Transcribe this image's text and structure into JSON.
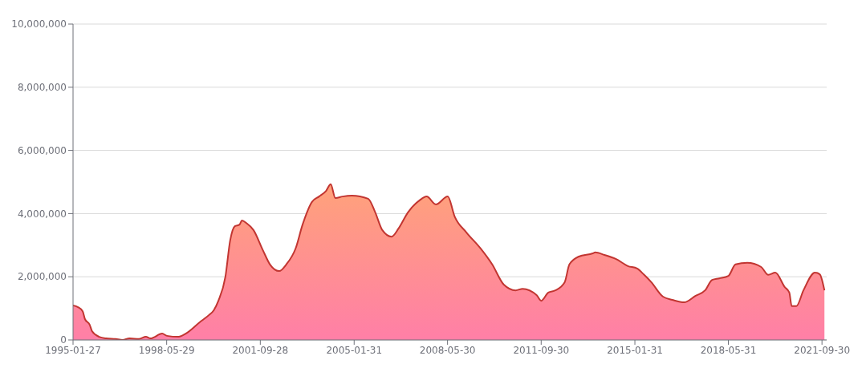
{
  "chart_data": {
    "type": "area",
    "x": [
      "1995-01-27",
      "1995-04",
      "1995-06",
      "1995-07",
      "1995-09",
      "1995-10",
      "1996-01",
      "1996-04",
      "1996-08",
      "1996-11",
      "1997-02",
      "1997-06",
      "1997-09",
      "1997-11",
      "1998-04",
      "1998-06",
      "1998-11",
      "1999-02",
      "1999-08",
      "1999-12",
      "2000-02",
      "2000-04",
      "2000-07",
      "2000-09",
      "2000-11",
      "2001-01",
      "2001-02",
      "2001-04",
      "2001-07",
      "2001-11",
      "2002-02",
      "2002-06",
      "2002-09",
      "2003-01",
      "2003-04",
      "2003-08",
      "2003-11",
      "2004-02",
      "2004-04",
      "2004-06",
      "2004-09",
      "2005-01",
      "2005-08",
      "2005-11",
      "2006-02",
      "2006-06",
      "2006-09",
      "2007-01",
      "2007-06",
      "2007-09",
      "2008-01",
      "2008-06",
      "2008-09",
      "2009-02",
      "2009-08",
      "2010-01",
      "2010-06",
      "2010-11",
      "2011-02",
      "2011-08",
      "2011-10",
      "2012-01",
      "2012-04",
      "2012-08",
      "2012-10",
      "2013-02",
      "2013-08",
      "2013-09",
      "2014-01",
      "2014-06",
      "2014-11",
      "2015-03",
      "2015-06",
      "2015-09",
      "2016-02",
      "2016-06",
      "2016-11",
      "2017-04",
      "2017-08",
      "2017-11",
      "2018-02",
      "2018-06",
      "2018-09",
      "2019-02",
      "2019-08",
      "2019-11",
      "2020-02",
      "2020-06",
      "2020-08",
      "2020-09",
      "2020-11",
      "2021-02",
      "2021-07",
      "2021-09",
      "2021-11"
    ],
    "series": [
      {
        "color": "#c23531",
        "values": [
          1090000,
          1040000,
          910000,
          660000,
          480000,
          280000,
          100000,
          50000,
          30000,
          0,
          50000,
          30000,
          100000,
          50000,
          200000,
          130000,
          100000,
          200000,
          560000,
          790000,
          940000,
          1240000,
          2000000,
          3150000,
          3600000,
          3650000,
          3780000,
          3700000,
          3480000,
          2840000,
          2390000,
          2180000,
          2390000,
          2900000,
          3650000,
          4370000,
          4540000,
          4720000,
          4930000,
          4490000,
          4540000,
          4570000,
          4470000,
          4040000,
          3480000,
          3270000,
          3530000,
          4040000,
          4420000,
          4540000,
          4290000,
          4540000,
          3900000,
          3400000,
          2900000,
          2390000,
          1750000,
          1570000,
          1620000,
          1420000,
          1240000,
          1500000,
          1570000,
          1830000,
          2390000,
          2640000,
          2740000,
          2770000,
          2690000,
          2560000,
          2340000,
          2260000,
          2060000,
          1830000,
          1370000,
          1270000,
          1190000,
          1400000,
          1570000,
          1900000,
          1950000,
          2030000,
          2390000,
          2440000,
          2310000,
          2060000,
          2130000,
          1680000,
          1500000,
          1070000,
          1070000,
          1570000,
          2130000,
          2080000,
          1570000
        ]
      }
    ],
    "xlim": [
      "1995-01-27",
      "2021-11-30"
    ],
    "xticks": [
      "1995-01-27",
      "1998-05-29",
      "2001-09-28",
      "2005-01-31",
      "2008-05-30",
      "2011-09-30",
      "2015-01-31",
      "2018-05-31",
      "2021-09-30"
    ],
    "ylim": [
      0,
      10000000
    ],
    "yticks": [
      {
        "value": 0,
        "label": "0"
      },
      {
        "value": 2000000,
        "label": "2,000,000"
      },
      {
        "value": 4000000,
        "label": "4,000,000"
      },
      {
        "value": 6000000,
        "label": "6,000,000"
      },
      {
        "value": 8000000,
        "label": "8,000,000"
      },
      {
        "value": 10000000,
        "label": "10,000,000"
      }
    ],
    "grid": "y",
    "legend": false,
    "marker": "none",
    "line_style": "solid"
  }
}
